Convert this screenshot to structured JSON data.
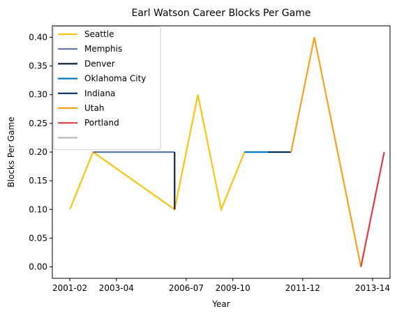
{
  "chart_data": {
    "type": "line",
    "title": "Earl Watson Career Blocks Per Game",
    "xlabel": "Year",
    "ylabel": "Blocks Per Game",
    "ylim": [
      -0.02,
      0.42
    ],
    "yticks": [
      "0.00",
      "0.05",
      "0.10",
      "0.15",
      "0.20",
      "0.25",
      "0.30",
      "0.35",
      "0.40"
    ],
    "ytick_values": [
      0,
      0.05,
      0.1,
      0.15,
      0.2,
      0.25,
      0.3,
      0.35,
      0.4
    ],
    "xtick_labels": [
      "2001-02",
      "2003-04",
      "2006-07",
      "2009-10",
      "2011-12",
      "2013-14"
    ],
    "xtick_index": [
      0,
      2,
      5,
      7,
      10,
      13
    ],
    "x_index_range": [
      -0.75,
      13.75
    ],
    "grid": false,
    "legend_position": "top-left",
    "series": [
      {
        "name": "Seattle",
        "color": "#FFC20E",
        "points": [
          [
            0,
            0.1
          ],
          [
            1,
            0.2
          ],
          [
            4.5,
            0.1
          ],
          [
            5.5,
            0.3
          ],
          [
            6.5,
            0.1
          ],
          [
            7.5,
            0.2
          ]
        ]
      },
      {
        "name": "Memphis",
        "color": "#5D76A9",
        "points": [
          [
            1,
            0.2
          ],
          [
            4.5,
            0.2
          ]
        ]
      },
      {
        "name": "Denver",
        "color": "#0E2240",
        "points": [
          [
            4.5,
            0.2
          ],
          [
            4.5,
            0.1
          ]
        ]
      },
      {
        "name": "Oklahoma City",
        "color": "#007AC1",
        "points": [
          [
            7.5,
            0.2
          ],
          [
            8.5,
            0.2
          ]
        ]
      },
      {
        "name": "Indiana",
        "color": "#002D62",
        "points": [
          [
            8.5,
            0.2
          ],
          [
            9.5,
            0.2
          ]
        ]
      },
      {
        "name": "Utah",
        "color": "#F9A01B",
        "points": [
          [
            9.5,
            0.2
          ],
          [
            10.5,
            0.4
          ],
          [
            12.5,
            0.0
          ]
        ]
      },
      {
        "name": "Portland",
        "color": "#E03A3E",
        "points": [
          [
            12.5,
            0.0
          ],
          [
            13.5,
            0.2
          ]
        ]
      },
      {
        "name": "",
        "color": "#BBBBBB",
        "points": []
      }
    ]
  }
}
